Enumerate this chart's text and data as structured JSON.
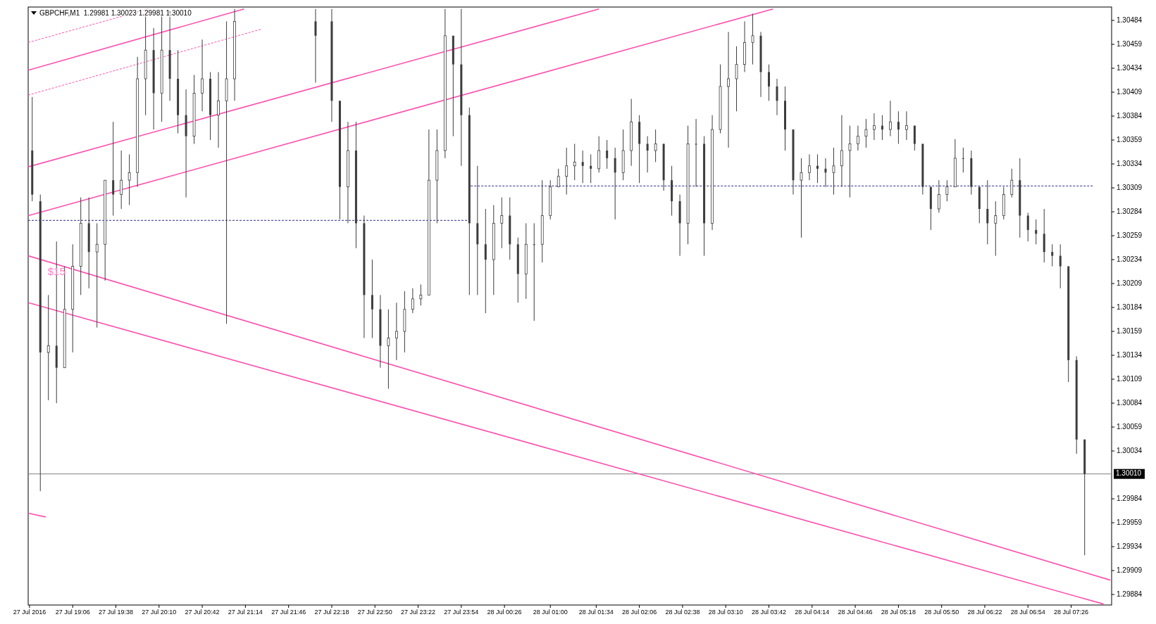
{
  "chart_data": {
    "type": "candlestick",
    "title": "GBPCHF,M1  1.29981 1.30023 1.29981 1.30010",
    "color": "#3c3c3c",
    "x": [
      "2016-07-27T18:36",
      "2016-07-27T18:42",
      "2016-07-27T18:48",
      "2016-07-27T18:54",
      "2016-07-27T19:00",
      "2016-07-27T19:06",
      "2016-07-27T19:12",
      "2016-07-27T19:18",
      "2016-07-27T19:24",
      "2016-07-27T19:30",
      "2016-07-27T19:36",
      "2016-07-27T19:42",
      "2016-07-27T19:48",
      "2016-07-27T19:54",
      "2016-07-27T20:00",
      "2016-07-27T20:06",
      "2016-07-27T20:12",
      "2016-07-27T20:18",
      "2016-07-27T20:24",
      "2016-07-27T20:30",
      "2016-07-27T20:36",
      "2016-07-27T20:42",
      "2016-07-27T20:48",
      "2016-07-27T20:54",
      "2016-07-27T21:00",
      "2016-07-27T21:06",
      "2016-07-27T22:06",
      "2016-07-27T22:18",
      "2016-07-27T22:24",
      "2016-07-27T22:30",
      "2016-07-27T22:36",
      "2016-07-27T22:42",
      "2016-07-27T22:48",
      "2016-07-27T22:54",
      "2016-07-27T23:00",
      "2016-07-27T23:06",
      "2016-07-27T23:12",
      "2016-07-27T23:18",
      "2016-07-27T23:24",
      "2016-07-27T23:30",
      "2016-07-27T23:36",
      "2016-07-27T23:42",
      "2016-07-27T23:48",
      "2016-07-27T23:54",
      "2016-07-28T00:00",
      "2016-07-28T00:06",
      "2016-07-28T00:12",
      "2016-07-28T00:18",
      "2016-07-28T00:24",
      "2016-07-28T00:30",
      "2016-07-28T00:36",
      "2016-07-28T00:42",
      "2016-07-28T00:48",
      "2016-07-28T00:54",
      "2016-07-28T01:00",
      "2016-07-28T01:06",
      "2016-07-28T01:12",
      "2016-07-28T01:18",
      "2016-07-28T01:24",
      "2016-07-28T01:30",
      "2016-07-28T01:36",
      "2016-07-28T01:42",
      "2016-07-28T01:48",
      "2016-07-28T01:54",
      "2016-07-28T02:00",
      "2016-07-28T02:06",
      "2016-07-28T02:12",
      "2016-07-28T02:18",
      "2016-07-28T02:24",
      "2016-07-28T02:30",
      "2016-07-28T02:36",
      "2016-07-28T02:42",
      "2016-07-28T02:48",
      "2016-07-28T02:54",
      "2016-07-28T03:00",
      "2016-07-28T03:06",
      "2016-07-28T03:12",
      "2016-07-28T03:18",
      "2016-07-28T03:24",
      "2016-07-28T03:30",
      "2016-07-28T03:36",
      "2016-07-28T03:42",
      "2016-07-28T03:48",
      "2016-07-28T03:54",
      "2016-07-28T04:00",
      "2016-07-28T04:06",
      "2016-07-28T04:12",
      "2016-07-28T04:18",
      "2016-07-28T04:24",
      "2016-07-28T04:30",
      "2016-07-28T04:36",
      "2016-07-28T04:42",
      "2016-07-28T04:48",
      "2016-07-28T04:54",
      "2016-07-28T05:00",
      "2016-07-28T05:06",
      "2016-07-28T05:12",
      "2016-07-28T05:18",
      "2016-07-28T05:24",
      "2016-07-28T05:30",
      "2016-07-28T05:36",
      "2016-07-28T05:42",
      "2016-07-28T05:48",
      "2016-07-28T05:54",
      "2016-07-28T06:00",
      "2016-07-28T06:06",
      "2016-07-28T06:12",
      "2016-07-28T06:18",
      "2016-07-28T06:24",
      "2016-07-28T06:30",
      "2016-07-28T06:36",
      "2016-07-28T06:42",
      "2016-07-28T06:48",
      "2016-07-28T06:54",
      "2016-07-28T07:00",
      "2016-07-28T07:06",
      "2016-07-28T07:12",
      "2016-07-28T07:18",
      "2016-07-28T07:24",
      "2016-07-28T07:30",
      "2016-07-28T07:36"
    ],
    "ohlc": [
      [
        1.30348,
        1.30404,
        1.30295,
        1.30302
      ],
      [
        1.30295,
        1.30302,
        1.29992,
        1.30137
      ],
      [
        1.30137,
        1.30197,
        1.30087,
        1.30144
      ],
      [
        1.30144,
        1.30253,
        1.30084,
        1.30121
      ],
      [
        1.30121,
        1.30227,
        1.30121,
        1.30182
      ],
      [
        1.30182,
        1.3025,
        1.30137,
        1.30227
      ],
      [
        1.30227,
        1.30299,
        1.30197,
        1.30272
      ],
      [
        1.30272,
        1.30299,
        1.30204,
        1.30242
      ],
      [
        1.30242,
        1.30272,
        1.30163,
        1.3025
      ],
      [
        1.3025,
        1.30317,
        1.30212,
        1.30317
      ],
      [
        1.30317,
        1.30378,
        1.3028,
        1.30302
      ],
      [
        1.30302,
        1.30348,
        1.30287,
        1.30317
      ],
      [
        1.30317,
        1.30344,
        1.30291,
        1.30325
      ],
      [
        1.30325,
        1.30446,
        1.3031,
        1.30423
      ],
      [
        1.30423,
        1.30496,
        1.30385,
        1.30453
      ],
      [
        1.30453,
        1.30476,
        1.3037,
        1.30408
      ],
      [
        1.30408,
        1.30496,
        1.30378,
        1.30453
      ],
      [
        1.30453,
        1.30494,
        1.304,
        1.30423
      ],
      [
        1.30423,
        1.30453,
        1.30366,
        1.30385
      ],
      [
        1.30385,
        1.30412,
        1.30299,
        1.30363
      ],
      [
        1.30363,
        1.30427,
        1.30355,
        1.30408
      ],
      [
        1.30408,
        1.30464,
        1.30389,
        1.30423
      ],
      [
        1.30423,
        1.3043,
        1.30359,
        1.30385
      ],
      [
        1.30385,
        1.3043,
        1.30351,
        1.304
      ],
      [
        1.304,
        1.30483,
        1.30167,
        1.30423
      ],
      [
        1.30423,
        1.30496,
        1.304,
        1.30483
      ],
      [
        1.30483,
        1.30496,
        1.30419,
        1.30468
      ],
      [
        1.30483,
        1.30496,
        1.30378,
        1.304
      ],
      [
        1.304,
        1.304,
        1.30276,
        1.3031
      ],
      [
        1.3031,
        1.30378,
        1.30272,
        1.30348
      ],
      [
        1.30348,
        1.30378,
        1.30246,
        1.30272
      ],
      [
        1.30272,
        1.3028,
        1.30152,
        1.30197
      ],
      [
        1.30197,
        1.30234,
        1.30152,
        1.30182
      ],
      [
        1.30182,
        1.30197,
        1.30121,
        1.30144
      ],
      [
        1.30144,
        1.30182,
        1.30099,
        1.30152
      ],
      [
        1.30152,
        1.30189,
        1.30129,
        1.30159
      ],
      [
        1.30159,
        1.30201,
        1.30137,
        1.30182
      ],
      [
        1.30182,
        1.30204,
        1.30178,
        1.30193
      ],
      [
        1.30193,
        1.30208,
        1.30186,
        1.30197
      ],
      [
        1.30197,
        1.3037,
        1.30197,
        1.30317
      ],
      [
        1.30317,
        1.3037,
        1.30272,
        1.30348
      ],
      [
        1.30348,
        1.30496,
        1.3034,
        1.30468
      ],
      [
        1.30468,
        1.30468,
        1.30363,
        1.30438
      ],
      [
        1.30438,
        1.30496,
        1.30332,
        1.30385
      ],
      [
        1.30385,
        1.30393,
        1.30197,
        1.30272
      ],
      [
        1.30272,
        1.30332,
        1.30197,
        1.3025
      ],
      [
        1.3025,
        1.30287,
        1.30178,
        1.30234
      ],
      [
        1.30234,
        1.30291,
        1.30197,
        1.30272
      ],
      [
        1.30272,
        1.30299,
        1.30246,
        1.3028
      ],
      [
        1.3028,
        1.30299,
        1.30234,
        1.3025
      ],
      [
        1.3025,
        1.30257,
        1.30189,
        1.30219
      ],
      [
        1.30219,
        1.30272,
        1.30193,
        1.3025
      ],
      [
        1.3025,
        1.30272,
        1.3017,
        1.3025
      ],
      [
        1.3025,
        1.30317,
        1.30231,
        1.3028
      ],
      [
        1.3028,
        1.30317,
        1.30276,
        1.3031
      ],
      [
        1.3031,
        1.30329,
        1.3031,
        1.30321
      ],
      [
        1.30321,
        1.30351,
        1.30302,
        1.30332
      ],
      [
        1.30332,
        1.30355,
        1.30317,
        1.30336
      ],
      [
        1.30336,
        1.30348,
        1.30314,
        1.30332
      ],
      [
        1.30332,
        1.30344,
        1.30314,
        1.30329
      ],
      [
        1.30329,
        1.30363,
        1.30325,
        1.30348
      ],
      [
        1.30348,
        1.30359,
        1.30329,
        1.3034
      ],
      [
        1.3034,
        1.30351,
        1.30276,
        1.30325
      ],
      [
        1.30325,
        1.3037,
        1.30317,
        1.30348
      ],
      [
        1.30348,
        1.30402,
        1.30332,
        1.30378
      ],
      [
        1.30378,
        1.30385,
        1.30314,
        1.30355
      ],
      [
        1.30355,
        1.30363,
        1.30325,
        1.30348
      ],
      [
        1.30348,
        1.3037,
        1.30336,
        1.30355
      ],
      [
        1.30355,
        1.30355,
        1.30306,
        1.30317
      ],
      [
        1.30317,
        1.30332,
        1.3028,
        1.30295
      ],
      [
        1.30295,
        1.30302,
        1.30238,
        1.30272
      ],
      [
        1.30272,
        1.30374,
        1.3025,
        1.30355
      ],
      [
        1.30355,
        1.30381,
        1.3031,
        1.30355
      ],
      [
        1.30355,
        1.30363,
        1.30238,
        1.30272
      ],
      [
        1.30272,
        1.30385,
        1.30265,
        1.3037
      ],
      [
        1.3037,
        1.30438,
        1.30366,
        1.30415
      ],
      [
        1.30415,
        1.30472,
        1.30351,
        1.30423
      ],
      [
        1.30423,
        1.30457,
        1.30389,
        1.30438
      ],
      [
        1.30438,
        1.30483,
        1.3043,
        1.30461
      ],
      [
        1.30461,
        1.30491,
        1.30438,
        1.30468
      ],
      [
        1.30468,
        1.30472,
        1.30404,
        1.3043
      ],
      [
        1.3043,
        1.30438,
        1.304,
        1.30415
      ],
      [
        1.30415,
        1.30423,
        1.30385,
        1.304
      ],
      [
        1.304,
        1.30415,
        1.30348,
        1.3037
      ],
      [
        1.3037,
        1.3037,
        1.30302,
        1.30317
      ],
      [
        1.30317,
        1.3034,
        1.30257,
        1.30325
      ],
      [
        1.30325,
        1.30344,
        1.30317,
        1.30332
      ],
      [
        1.30332,
        1.30344,
        1.30314,
        1.30329
      ],
      [
        1.30329,
        1.3034,
        1.3031,
        1.30325
      ],
      [
        1.30325,
        1.30351,
        1.30302,
        1.30332
      ],
      [
        1.30332,
        1.30385,
        1.3031,
        1.30348
      ],
      [
        1.30348,
        1.30374,
        1.30299,
        1.30355
      ],
      [
        1.30355,
        1.30374,
        1.30348,
        1.30363
      ],
      [
        1.30363,
        1.30381,
        1.30351,
        1.3037
      ],
      [
        1.3037,
        1.30387,
        1.30359,
        1.30374
      ],
      [
        1.30374,
        1.30385,
        1.30359,
        1.3037
      ],
      [
        1.3037,
        1.304,
        1.30363,
        1.30378
      ],
      [
        1.30378,
        1.30389,
        1.30355,
        1.3037
      ],
      [
        1.3037,
        1.30389,
        1.30359,
        1.30374
      ],
      [
        1.30374,
        1.30374,
        1.30348,
        1.30355
      ],
      [
        1.30355,
        1.30355,
        1.30302,
        1.3031
      ],
      [
        1.3031,
        1.3031,
        1.30265,
        1.30287
      ],
      [
        1.30287,
        1.30317,
        1.30283,
        1.30302
      ],
      [
        1.30302,
        1.30317,
        1.30295,
        1.3031
      ],
      [
        1.3031,
        1.3036,
        1.3031,
        1.3034
      ],
      [
        1.3034,
        1.30351,
        1.30325,
        1.3034
      ],
      [
        1.3034,
        1.30348,
        1.30302,
        1.3031
      ],
      [
        1.3031,
        1.3031,
        1.30272,
        1.30287
      ],
      [
        1.30287,
        1.30317,
        1.3025,
        1.30272
      ],
      [
        1.30272,
        1.30295,
        1.30238,
        1.3028
      ],
      [
        1.3028,
        1.3031,
        1.30276,
        1.30302
      ],
      [
        1.30302,
        1.30329,
        1.30299,
        1.30317
      ],
      [
        1.30317,
        1.3034,
        1.30257,
        1.3028
      ],
      [
        1.3028,
        1.30283,
        1.30253,
        1.30265
      ],
      [
        1.30265,
        1.30276,
        1.3025,
        1.30261
      ],
      [
        1.30261,
        1.30287,
        1.30231,
        1.30242
      ],
      [
        1.30242,
        1.3025,
        1.30227,
        1.30238
      ],
      [
        1.30238,
        1.3025,
        1.30204,
        1.30227
      ],
      [
        1.30227,
        1.30227,
        1.30106,
        1.30129
      ],
      [
        1.30129,
        1.30133,
        1.30031,
        1.30046
      ],
      [
        1.30046,
        1.30046,
        1.29925,
        1.3001
      ]
    ],
    "series": [
      {
        "type": "line",
        "x": [
          "2016-07-27T18:33",
          "2016-07-27T21:13"
        ],
        "values": [
          1.30432,
          1.30496
        ],
        "color": "#ff4fae",
        "line_style": "solid"
      },
      {
        "type": "line",
        "x": [
          "2016-07-27T18:33",
          "2016-07-28T01:36"
        ],
        "values": [
          1.30331,
          1.30496
        ],
        "color": "#ff4fae",
        "line_style": "solid"
      },
      {
        "type": "line",
        "x": [
          "2016-07-27T18:33",
          "2016-07-28T03:45"
        ],
        "values": [
          1.3028,
          1.30496
        ],
        "color": "#ff4fae",
        "line_style": "solid"
      },
      {
        "type": "line",
        "x": [
          "2016-07-27T18:33",
          "2016-07-27T20:02"
        ],
        "values": [
          1.30461,
          1.30496
        ],
        "color": "#ff4fae",
        "line_style": "dashed"
      },
      {
        "type": "line",
        "x": [
          "2016-07-27T18:33",
          "2016-07-27T21:26"
        ],
        "values": [
          1.30406,
          1.30475
        ],
        "color": "#ff4fae",
        "line_style": "dashed"
      },
      {
        "type": "line",
        "x": [
          "2016-07-27T18:33",
          "2016-07-28T07:55"
        ],
        "values": [
          1.30238,
          1.29899
        ],
        "color": "#ff4fae",
        "line_style": "solid"
      },
      {
        "type": "line",
        "x": [
          "2016-07-27T18:33",
          "2016-07-28T07:50"
        ],
        "values": [
          1.30189,
          1.29874
        ],
        "color": "#ff4fae",
        "line_style": "solid"
      },
      {
        "type": "line",
        "x": [
          "2016-07-27T18:33",
          "2016-07-27T18:46"
        ],
        "values": [
          1.29969,
          1.29965
        ],
        "color": "#ff4fae",
        "line_style": "solid"
      },
      {
        "type": "line",
        "x": [
          "2016-07-27T18:33",
          "2016-07-27T23:59"
        ],
        "values": [
          1.30275,
          1.30275
        ],
        "color": "#2a2a8a",
        "line_style": "dashed"
      },
      {
        "type": "line",
        "x": [
          "2016-07-28T00:01",
          "2016-07-28T07:42"
        ],
        "values": [
          1.30311,
          1.30311
        ],
        "color": "#2a2a8a",
        "line_style": "dashed"
      }
    ],
    "xlim": [
      "2016-07-27T18:33",
      "2016-07-28T07:56"
    ],
    "xticks": [
      {
        "value": "2016-07-27T18:34",
        "label": "27 Jul 2016"
      },
      {
        "value": "2016-07-27T19:06",
        "label": "27 Jul 19:06"
      },
      {
        "value": "2016-07-27T19:38",
        "label": "27 Jul 19:38"
      },
      {
        "value": "2016-07-27T20:10",
        "label": "27 Jul 20:10"
      },
      {
        "value": "2016-07-27T20:42",
        "label": "27 Jul 20:42"
      },
      {
        "value": "2016-07-27T21:14",
        "label": "27 Jul 21:14"
      },
      {
        "value": "2016-07-27T21:46",
        "label": "27 Jul 21:46"
      },
      {
        "value": "2016-07-27T22:18",
        "label": "27 Jul 22:18"
      },
      {
        "value": "2016-07-27T22:50",
        "label": "27 Jul 22:50"
      },
      {
        "value": "2016-07-27T23:22",
        "label": "27 Jul 23:22"
      },
      {
        "value": "2016-07-27T23:54",
        "label": "27 Jul 23:54"
      },
      {
        "value": "2016-07-28T00:26",
        "label": "28 Jul 00:26"
      },
      {
        "value": "2016-07-28T01:00",
        "label": "28 Jul 01:00"
      },
      {
        "value": "2016-07-28T01:34",
        "label": "28 Jul 01:34"
      },
      {
        "value": "2016-07-28T02:06",
        "label": "28 Jul 02:06"
      },
      {
        "value": "2016-07-28T02:38",
        "label": "28 Jul 02:38"
      },
      {
        "value": "2016-07-28T03:10",
        "label": "28 Jul 03:10"
      },
      {
        "value": "2016-07-28T03:42",
        "label": "28 Jul 03:42"
      },
      {
        "value": "2016-07-28T04:14",
        "label": "28 Jul 04:14"
      },
      {
        "value": "2016-07-28T04:46",
        "label": "28 Jul 04:46"
      },
      {
        "value": "2016-07-28T05:18",
        "label": "28 Jul 05:18"
      },
      {
        "value": "2016-07-28T05:50",
        "label": "28 Jul 05:50"
      },
      {
        "value": "2016-07-28T06:22",
        "label": "28 Jul 06:22"
      },
      {
        "value": "2016-07-28T06:54",
        "label": "28 Jul 06:54"
      },
      {
        "value": "2016-07-28T07:26",
        "label": "28 Jul 07:26"
      }
    ],
    "ylim": [
      1.29873,
      1.30498
    ],
    "yticks": [
      1.30484,
      1.30459,
      1.30434,
      1.30409,
      1.30384,
      1.30359,
      1.30334,
      1.30309,
      1.30284,
      1.30259,
      1.30234,
      1.30209,
      1.30184,
      1.30159,
      1.30134,
      1.30109,
      1.30084,
      1.30059,
      1.30034,
      1.29984,
      1.29959,
      1.29934,
      1.29909,
      1.29884
    ],
    "ref_lines": [
      {
        "axis": "y",
        "value": 1.3001,
        "label": "1.30010",
        "color": "#808080"
      }
    ],
    "annotations": [
      {
        "text": "$15",
        "x": "2016-07-27T18:54",
        "y": 1.30221
      }
    ]
  }
}
